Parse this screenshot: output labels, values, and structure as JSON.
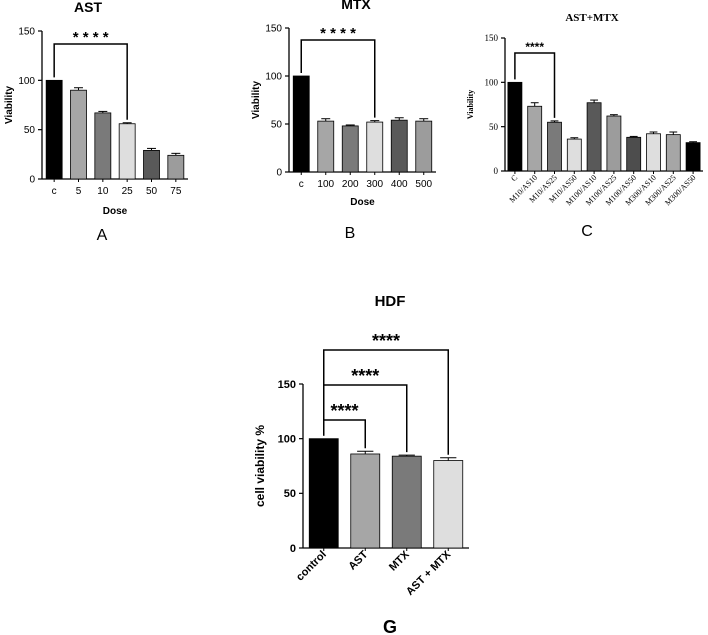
{
  "chart_data": [
    {
      "panel": "A",
      "type": "bar",
      "title": "AST",
      "xlabel": "Dose",
      "ylabel": "Viability",
      "ylim": [
        0,
        150
      ],
      "yticks": [
        "0",
        "50",
        "100",
        "150"
      ],
      "categories": [
        "c",
        "5",
        "10",
        "25",
        "50",
        "75"
      ],
      "values": [
        100,
        90,
        67,
        56,
        29,
        24
      ],
      "errors": [
        0,
        2.5,
        1.5,
        1,
        2,
        2
      ],
      "colors": [
        "#000000",
        "#a6a6a6",
        "#7a7a7a",
        "#dedede",
        "#595959",
        "#9c9c9c"
      ],
      "annotations": [
        {
          "from": 0,
          "to": 3,
          "text": "* * * *"
        }
      ],
      "grid": false
    },
    {
      "panel": "B",
      "type": "bar",
      "title": "MTX",
      "xlabel": "Dose",
      "ylabel": "Viability",
      "ylim": [
        0,
        150
      ],
      "yticks": [
        "0",
        "50",
        "100",
        "150"
      ],
      "categories": [
        "c",
        "100",
        "200",
        "300",
        "400",
        "500"
      ],
      "values": [
        100,
        53,
        48,
        52,
        54,
        53
      ],
      "errors": [
        0,
        2.5,
        1,
        1.5,
        2.5,
        2.5
      ],
      "colors": [
        "#000000",
        "#a6a6a6",
        "#7a7a7a",
        "#dedede",
        "#595959",
        "#9c9c9c"
      ],
      "annotations": [
        {
          "from": 0,
          "to": 3,
          "text": "* * * *"
        }
      ],
      "grid": false
    },
    {
      "panel": "C",
      "type": "bar",
      "title": "AST+MTX",
      "xlabel": "",
      "ylabel": "Viability",
      "ylim": [
        0,
        150
      ],
      "yticks": [
        "0",
        "50",
        "100",
        "150"
      ],
      "categories": [
        "C",
        "M10/AS10",
        "M10/AS25",
        "M10/AS50",
        "M100/AS10",
        "M100/AS25",
        "M100/AS50",
        "M300/AS10",
        "M300/AS25",
        "M300/AS50"
      ],
      "values": [
        100,
        73,
        55,
        36,
        77,
        62,
        38,
        42,
        41,
        32
      ],
      "errors": [
        0,
        4,
        1.5,
        1.5,
        3,
        1.5,
        1,
        2,
        3,
        1
      ],
      "colors": [
        "#000000",
        "#a6a6a6",
        "#7a7a7a",
        "#dedede",
        "#595959",
        "#9c9c9c",
        "#4d4d4d",
        "#dedede",
        "#a6a6a6",
        "#000000"
      ],
      "annotations": [
        {
          "from": 0,
          "to": 2,
          "text": "****"
        }
      ],
      "grid": false
    },
    {
      "panel": "G",
      "type": "bar",
      "title": "HDF",
      "xlabel": "",
      "ylabel": "cell viability %",
      "ylim": [
        0,
        150
      ],
      "yticks": [
        "0",
        "50",
        "100",
        "150"
      ],
      "categories": [
        "control",
        "AST",
        "MTX",
        "AST + MTX"
      ],
      "values": [
        100,
        86,
        84,
        80
      ],
      "errors": [
        0,
        2.5,
        1,
        2.5
      ],
      "colors": [
        "#000000",
        "#a6a6a6",
        "#7a7a7a",
        "#dedede"
      ],
      "annotations": [
        {
          "from": 0,
          "to": 1,
          "text": "****"
        },
        {
          "from": 0,
          "to": 2,
          "text": "****"
        },
        {
          "from": 0,
          "to": 3,
          "text": "****"
        }
      ],
      "grid": false
    }
  ]
}
